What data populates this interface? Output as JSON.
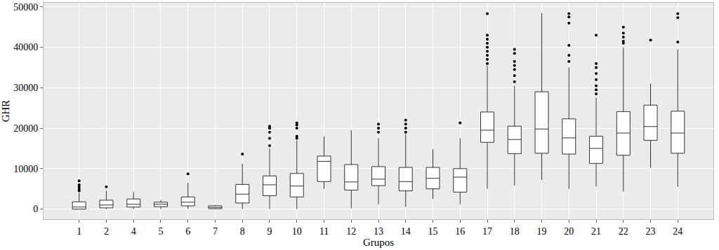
{
  "chart_data": {
    "type": "box",
    "xlabel": "Grupos",
    "ylabel": "GHR",
    "categories": [
      "1",
      "2",
      "4",
      "5",
      "6",
      "7",
      "8",
      "9",
      "10",
      "11",
      "12",
      "13",
      "14",
      "15",
      "16",
      "17",
      "18",
      "19",
      "20",
      "21",
      "22",
      "23",
      "24"
    ],
    "q1": [
      0,
      300,
      500,
      600,
      800,
      100,
      1500,
      3300,
      3000,
      6800,
      4700,
      5800,
      4500,
      5000,
      4200,
      16500,
      13700,
      13800,
      13600,
      11300,
      13300,
      17000,
      13800
    ],
    "median": [
      500,
      1000,
      1200,
      1200,
      1700,
      400,
      3700,
      6000,
      5700,
      11800,
      6700,
      7400,
      6800,
      7600,
      7900,
      19500,
      17200,
      19800,
      17600,
      15000,
      18800,
      20400,
      18800
    ],
    "q3": [
      1800,
      2200,
      2500,
      1700,
      3000,
      800,
      6100,
      8200,
      8800,
      13100,
      11000,
      10500,
      10300,
      10300,
      10000,
      24000,
      20500,
      29000,
      22300,
      18000,
      24100,
      25700,
      24200
    ],
    "whisker_low": [
      0,
      0,
      0,
      0,
      0,
      0,
      0,
      0,
      0,
      5000,
      200,
      1200,
      500,
      2500,
      1200,
      5000,
      5800,
      7200,
      5000,
      5600,
      4300,
      10200,
      5500
    ],
    "whisker_high": [
      4000,
      4500,
      4200,
      2200,
      6500,
      1000,
      11200,
      15000,
      17000,
      18000,
      19500,
      17500,
      18500,
      14800,
      17500,
      35500,
      30500,
      48500,
      35000,
      27500,
      40000,
      31000,
      39500
    ],
    "outliers": [
      [
        4500,
        5000,
        5500,
        6000,
        7000
      ],
      [
        5500
      ],
      [],
      [],
      [
        8700
      ],
      [],
      [
        13600
      ],
      [
        15700,
        17500,
        19000,
        20000,
        20500
      ],
      [
        17500,
        18000,
        20000,
        20800,
        21300
      ],
      [],
      [],
      [
        19000,
        20000,
        21000
      ],
      [
        19000,
        20000,
        21000,
        22000
      ],
      [],
      [
        21300
      ],
      [
        36000,
        37000,
        38000,
        39000,
        40000,
        41000,
        42000,
        43000,
        48300
      ],
      [
        31500,
        33000,
        34500,
        35500,
        36500,
        38500,
        39500
      ],
      [],
      [
        36500,
        38000,
        40500,
        46000,
        47500,
        48300
      ],
      [
        28500,
        29500,
        30500,
        32000,
        33500,
        35000,
        36000,
        43000
      ],
      [
        41000,
        41500,
        42500,
        43500,
        45000
      ],
      [
        41800
      ],
      [
        41300,
        47300,
        48300
      ]
    ],
    "ylim": [
      -2500,
      51000
    ],
    "yticks": [
      0,
      10000,
      20000,
      30000,
      40000,
      50000
    ],
    "grid": true
  }
}
